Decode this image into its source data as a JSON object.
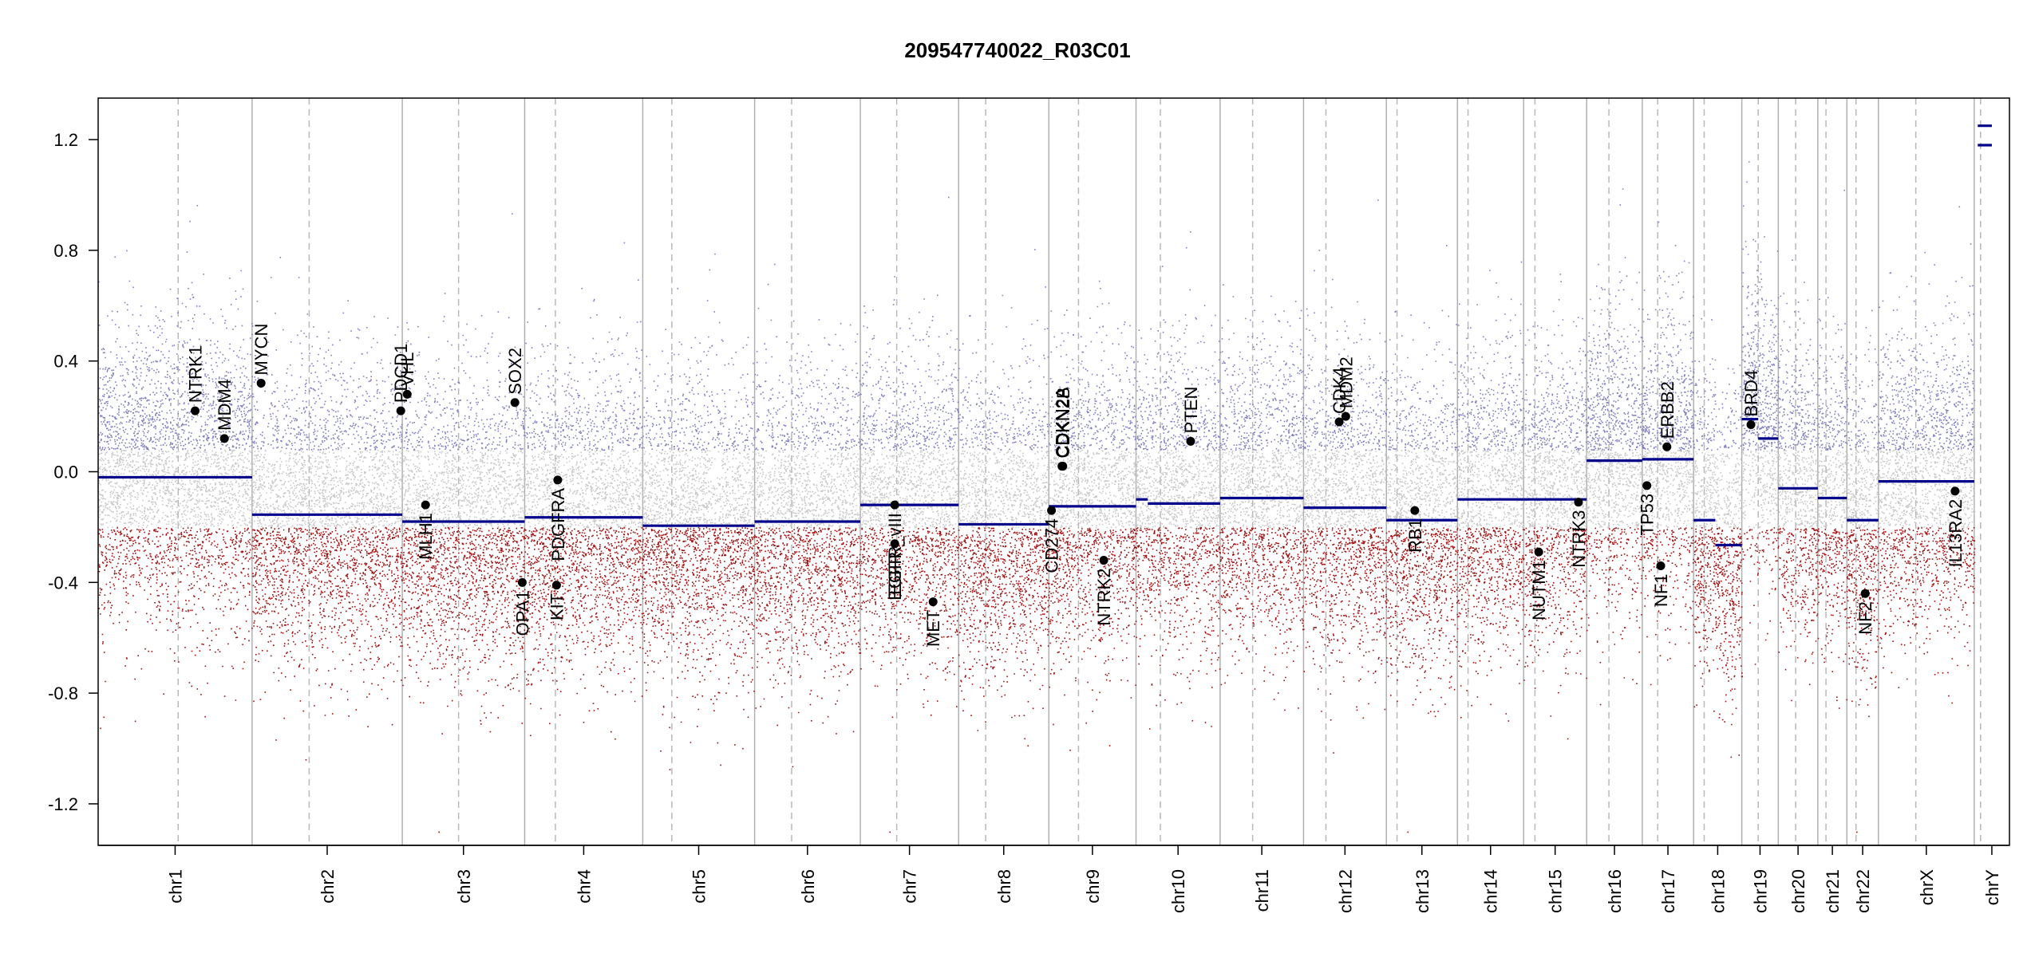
{
  "chart_data": {
    "type": "scatter",
    "title": "209547740022_R03C01",
    "xlabel": "",
    "ylabel": "",
    "ylim": [
      -1.35,
      1.35
    ],
    "y_ticks": [
      -1.2,
      -0.8,
      -0.4,
      0.0,
      0.4,
      0.8,
      1.2
    ],
    "y_tick_labels": [
      "-1.2",
      "-0.8",
      "-0.4",
      "0.0",
      "0.4",
      "0.8",
      "1.2"
    ],
    "colors": {
      "gain": "#8080c0",
      "neutral": "#c8c8c8",
      "loss": "#a01010",
      "segment": "#00008b",
      "gene": "#000000"
    },
    "chromosomes": [
      {
        "name": "chr1",
        "size": 249,
        "centromere": 0.52
      },
      {
        "name": "chr2",
        "size": 243,
        "centromere": 0.38
      },
      {
        "name": "chr3",
        "size": 198,
        "centromere": 0.46
      },
      {
        "name": "chr4",
        "size": 191,
        "centromere": 0.26
      },
      {
        "name": "chr5",
        "size": 181,
        "centromere": 0.26
      },
      {
        "name": "chr6",
        "size": 171,
        "centromere": 0.35
      },
      {
        "name": "chr7",
        "size": 159,
        "centromere": 0.37
      },
      {
        "name": "chr8",
        "size": 146,
        "centromere": 0.3
      },
      {
        "name": "chr9",
        "size": 141,
        "centromere": 0.34
      },
      {
        "name": "chr10",
        "size": 136,
        "centromere": 0.29
      },
      {
        "name": "chr11",
        "size": 135,
        "centromere": 0.39
      },
      {
        "name": "chr12",
        "size": 134,
        "centromere": 0.27
      },
      {
        "name": "chr13",
        "size": 115,
        "centromere": 0.15
      },
      {
        "name": "chr14",
        "size": 107,
        "centromere": 0.16
      },
      {
        "name": "chr15",
        "size": 102,
        "centromere": 0.18
      },
      {
        "name": "chr16",
        "size": 90,
        "centromere": 0.4
      },
      {
        "name": "chr17",
        "size": 83,
        "centromere": 0.3
      },
      {
        "name": "chr18",
        "size": 78,
        "centromere": 0.22
      },
      {
        "name": "chr19",
        "size": 59,
        "centromere": 0.45
      },
      {
        "name": "chr20",
        "size": 64,
        "centromere": 0.44
      },
      {
        "name": "chr21",
        "size": 47,
        "centromere": 0.28
      },
      {
        "name": "chr22",
        "size": 51,
        "centromere": 0.29
      },
      {
        "name": "chrX",
        "size": 155,
        "centromere": 0.39
      },
      {
        "name": "chrY",
        "size": 57,
        "centromere": 0.18
      }
    ],
    "segments": [
      {
        "chr": "chr1",
        "start": 0.0,
        "end": 1.0,
        "value": -0.02
      },
      {
        "chr": "chr2",
        "start": 0.0,
        "end": 1.0,
        "value": -0.155
      },
      {
        "chr": "chr3",
        "start": 0.0,
        "end": 1.0,
        "value": -0.18
      },
      {
        "chr": "chr4",
        "start": 0.0,
        "end": 1.0,
        "value": -0.165
      },
      {
        "chr": "chr5",
        "start": 0.0,
        "end": 1.0,
        "value": -0.195
      },
      {
        "chr": "chr6",
        "start": 0.0,
        "end": 1.0,
        "value": -0.18
      },
      {
        "chr": "chr7",
        "start": 0.0,
        "end": 1.0,
        "value": -0.12
      },
      {
        "chr": "chr8",
        "start": 0.0,
        "end": 1.0,
        "value": -0.19
      },
      {
        "chr": "chr9",
        "start": 0.0,
        "end": 1.0,
        "value": -0.125
      },
      {
        "chr": "chr10",
        "start": 0.0,
        "end": 0.14,
        "value": -0.1
      },
      {
        "chr": "chr10",
        "start": 0.14,
        "end": 1.0,
        "value": -0.115
      },
      {
        "chr": "chr11",
        "start": 0.0,
        "end": 1.0,
        "value": -0.095
      },
      {
        "chr": "chr12",
        "start": 0.0,
        "end": 1.0,
        "value": -0.13
      },
      {
        "chr": "chr13",
        "start": 0.0,
        "end": 1.0,
        "value": -0.175
      },
      {
        "chr": "chr14",
        "start": 0.0,
        "end": 1.0,
        "value": -0.1
      },
      {
        "chr": "chr15",
        "start": 0.0,
        "end": 1.0,
        "value": -0.1
      },
      {
        "chr": "chr16",
        "start": 0.0,
        "end": 1.0,
        "value": 0.04
      },
      {
        "chr": "chr17",
        "start": 0.0,
        "end": 1.0,
        "value": 0.045
      },
      {
        "chr": "chr18",
        "start": 0.0,
        "end": 0.45,
        "value": -0.175
      },
      {
        "chr": "chr18",
        "start": 0.45,
        "end": 1.0,
        "value": -0.265
      },
      {
        "chr": "chr19",
        "start": 0.0,
        "end": 0.45,
        "value": 0.19
      },
      {
        "chr": "chr19",
        "start": 0.45,
        "end": 1.0,
        "value": 0.12
      },
      {
        "chr": "chr20",
        "start": 0.0,
        "end": 1.0,
        "value": -0.06
      },
      {
        "chr": "chr21",
        "start": 0.0,
        "end": 1.0,
        "value": -0.095
      },
      {
        "chr": "chr22",
        "start": 0.0,
        "end": 1.0,
        "value": -0.175
      },
      {
        "chr": "chrX",
        "start": 0.0,
        "end": 1.0,
        "value": -0.035
      },
      {
        "chr": "chrY",
        "start": 0.1,
        "end": 0.5,
        "value": 1.18
      },
      {
        "chr": "chrY",
        "start": 0.1,
        "end": 0.5,
        "value": 1.25
      }
    ],
    "genes": [
      {
        "name": "NTRK1",
        "chr": "chr1",
        "pos": 0.63,
        "value": 0.22,
        "label_side": "above"
      },
      {
        "name": "MDM4",
        "chr": "chr1",
        "pos": 0.82,
        "value": 0.12,
        "label_side": "above"
      },
      {
        "name": "MYCN",
        "chr": "chr2",
        "pos": 0.06,
        "value": 0.32,
        "label_side": "above"
      },
      {
        "name": "PDCD1",
        "chr": "chr2",
        "pos": 0.99,
        "value": 0.22,
        "label_side": "above"
      },
      {
        "name": "VHL",
        "chr": "chr3",
        "pos": 0.04,
        "value": 0.28,
        "label_side": "above"
      },
      {
        "name": "MLH1",
        "chr": "chr3",
        "pos": 0.19,
        "value": -0.12,
        "label_side": "below"
      },
      {
        "name": "SOX2",
        "chr": "chr3",
        "pos": 0.92,
        "value": 0.25,
        "label_side": "above"
      },
      {
        "name": "OPA1",
        "chr": "chr3",
        "pos": 0.98,
        "value": -0.4,
        "label_side": "below"
      },
      {
        "name": "KIT",
        "chr": "chr4",
        "pos": 0.27,
        "value": -0.41,
        "label_side": "below"
      },
      {
        "name": "PDGFRA",
        "chr": "chr4",
        "pos": 0.28,
        "value": -0.03,
        "label_side": "below"
      },
      {
        "name": "EGFR",
        "chr": "chr7",
        "pos": 0.35,
        "value": -0.26,
        "label_side": "below"
      },
      {
        "name": "EGFR_vIII",
        "chr": "chr7",
        "pos": 0.35,
        "value": -0.12,
        "label_side": "below"
      },
      {
        "name": "MET",
        "chr": "chr7",
        "pos": 0.74,
        "value": -0.47,
        "label_side": "below"
      },
      {
        "name": "CD274",
        "chr": "chr9",
        "pos": 0.03,
        "value": -0.14,
        "label_side": "below"
      },
      {
        "name": "CDKN2A",
        "chr": "chr9",
        "pos": 0.15,
        "value": 0.02,
        "label_side": "above"
      },
      {
        "name": "CDKN2B",
        "chr": "chr9",
        "pos": 0.16,
        "value": 0.02,
        "label_side": "above"
      },
      {
        "name": "NTRK2",
        "chr": "chr9",
        "pos": 0.63,
        "value": -0.32,
        "label_side": "below"
      },
      {
        "name": "PTEN",
        "chr": "chr10",
        "pos": 0.65,
        "value": 0.11,
        "label_side": "above"
      },
      {
        "name": "CDK4",
        "chr": "chr12",
        "pos": 0.43,
        "value": 0.18,
        "label_side": "above"
      },
      {
        "name": "MDM2",
        "chr": "chr12",
        "pos": 0.51,
        "value": 0.2,
        "label_side": "above"
      },
      {
        "name": "RB1",
        "chr": "chr13",
        "pos": 0.4,
        "value": -0.14,
        "label_side": "below"
      },
      {
        "name": "NUTM1",
        "chr": "chr15",
        "pos": 0.24,
        "value": -0.29,
        "label_side": "below"
      },
      {
        "name": "NTRK3",
        "chr": "chr15",
        "pos": 0.87,
        "value": -0.11,
        "label_side": "below"
      },
      {
        "name": "TP53",
        "chr": "chr17",
        "pos": 0.09,
        "value": -0.05,
        "label_side": "below"
      },
      {
        "name": "NF1",
        "chr": "chr17",
        "pos": 0.36,
        "value": -0.34,
        "label_side": "below"
      },
      {
        "name": "ERBB2",
        "chr": "chr17",
        "pos": 0.48,
        "value": 0.09,
        "label_side": "above"
      },
      {
        "name": "BRD4",
        "chr": "chr19",
        "pos": 0.25,
        "value": 0.17,
        "label_side": "above"
      },
      {
        "name": "NF2",
        "chr": "chr22",
        "pos": 0.58,
        "value": -0.44,
        "label_side": "below"
      },
      {
        "name": "IL13RA2",
        "chr": "chrX",
        "pos": 0.8,
        "value": -0.07,
        "label_side": "below"
      }
    ]
  }
}
